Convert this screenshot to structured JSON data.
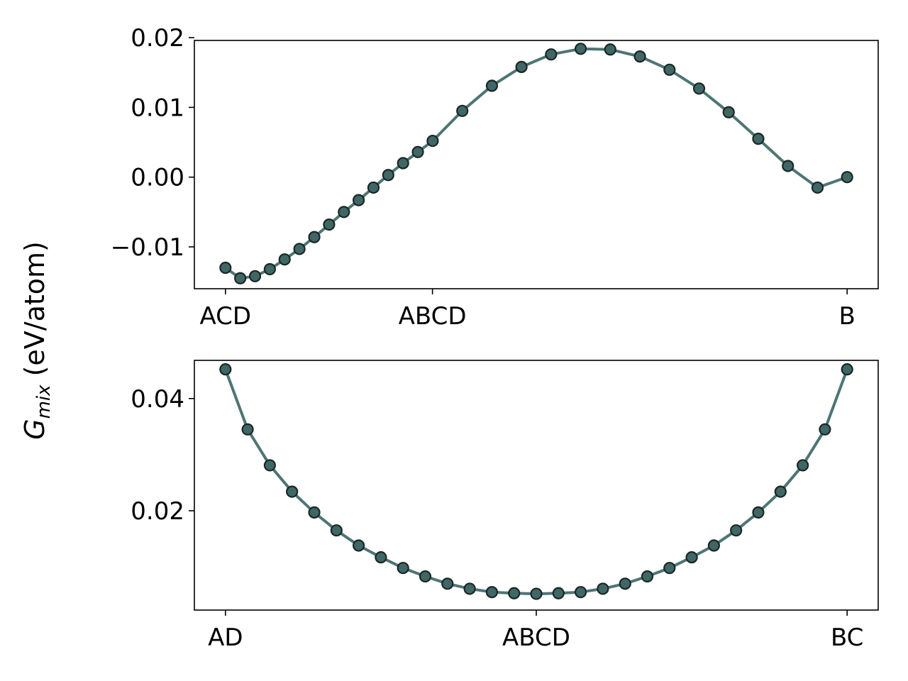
{
  "figure": {
    "ylabel_main": "G",
    "ylabel_sub": "mix",
    "ylabel_units": " (eV/atom)"
  },
  "colors": {
    "line": "#4d7574",
    "marker_fill": "#3f6766",
    "marker_edge": "#1c2626",
    "axis": "#000000"
  },
  "chart_data": [
    {
      "type": "line",
      "x_tick_labels": [
        {
          "x": 0,
          "label": "ACD"
        },
        {
          "x": 0.333,
          "label": "ABCD"
        },
        {
          "x": 1,
          "label": "B"
        }
      ],
      "xlim": [
        -0.05,
        1.05
      ],
      "ylim": [
        -0.016,
        0.0196
      ],
      "y_ticks": [
        {
          "value": -0.01,
          "label": "−0.01"
        },
        {
          "value": 0.0,
          "label": "0.00"
        },
        {
          "value": 0.01,
          "label": "0.01"
        },
        {
          "value": 0.02,
          "label": "0.02"
        }
      ],
      "x": [
        0,
        0.0238,
        0.0476,
        0.0714,
        0.0952,
        0.119,
        0.1429,
        0.1667,
        0.1905,
        0.2143,
        0.2381,
        0.2619,
        0.2857,
        0.3095,
        0.3333,
        0.381,
        0.4286,
        0.4762,
        0.5238,
        0.5714,
        0.619,
        0.6667,
        0.7143,
        0.7619,
        0.8095,
        0.8571,
        0.9048,
        0.9524,
        1.0
      ],
      "y": [
        -0.013,
        -0.0145,
        -0.0142,
        -0.0132,
        -0.0118,
        -0.0103,
        -0.0086,
        -0.0068,
        -0.005,
        -0.0033,
        -0.0015,
        0.0003,
        0.002,
        0.0036,
        0.0052,
        0.0095,
        0.0131,
        0.0158,
        0.0176,
        0.0184,
        0.0183,
        0.0173,
        0.0154,
        0.0127,
        0.0093,
        0.0055,
        0.0016,
        -0.0015,
        0.0
      ]
    },
    {
      "type": "line",
      "x_tick_labels": [
        {
          "x": 0,
          "label": "AD"
        },
        {
          "x": 0.5,
          "label": "ABCD"
        },
        {
          "x": 1,
          "label": "BC"
        }
      ],
      "xlim": [
        -0.05,
        1.05
      ],
      "ylim": [
        0.0023,
        0.0468
      ],
      "y_ticks": [
        {
          "value": 0.02,
          "label": "0.02"
        },
        {
          "value": 0.04,
          "label": "0.04"
        }
      ],
      "x": [
        0,
        0.0357,
        0.0714,
        0.1071,
        0.1429,
        0.1786,
        0.2143,
        0.25,
        0.2857,
        0.3214,
        0.3571,
        0.3929,
        0.4286,
        0.4643,
        0.5,
        0.5357,
        0.5714,
        0.6071,
        0.6429,
        0.6786,
        0.7143,
        0.75,
        0.7857,
        0.8214,
        0.8571,
        0.8929,
        0.9286,
        0.9643,
        1.0
      ],
      "y": [
        0.0452,
        0.0345,
        0.0281,
        0.0234,
        0.0197,
        0.0165,
        0.0138,
        0.0117,
        0.0098,
        0.0083,
        0.007,
        0.0061,
        0.0055,
        0.0053,
        0.0052,
        0.0053,
        0.0055,
        0.0061,
        0.007,
        0.0083,
        0.0098,
        0.0117,
        0.0138,
        0.0165,
        0.0197,
        0.0234,
        0.0281,
        0.0345,
        0.0452
      ]
    }
  ]
}
